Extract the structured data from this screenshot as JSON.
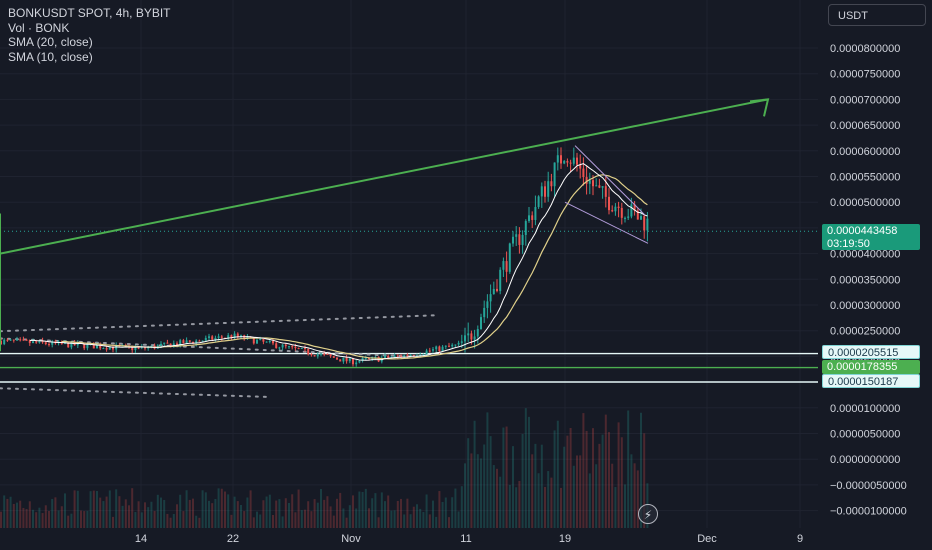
{
  "legend": {
    "symbol": "BONKUSDT SPOT, 4h, BYBIT",
    "volume": "Vol · BONK",
    "sma20": "SMA (20, close)",
    "sma10": "SMA (10, close)"
  },
  "currency_button": "USDT",
  "current_price": {
    "value": "0.0000443458",
    "countdown": "03:19:50"
  },
  "level_badges": [
    "0.0000205515",
    "0.0000178355",
    "0.0000150187"
  ],
  "flash_icon": "lightning-icon",
  "colors": {
    "background": "#161a25",
    "grid": "#1f2330",
    "up": "#26a69a",
    "down": "#ef5350",
    "sma20": "#e0d08a",
    "sma10": "#ffffff",
    "drawing_green": "#4caf50",
    "channel_line": "#b39ddb",
    "dotted": "#9598a1",
    "level_line": "#e6f8f8"
  },
  "chart_data": {
    "type": "candlestick",
    "title": "BONKUSDT SPOT, 4h, BYBIT",
    "price_ticks": [
      "0.0000800000",
      "0.0000750000",
      "0.0000700000",
      "0.0000650000",
      "0.0000600000",
      "0.0000550000",
      "0.0000500000",
      "0.0000450000",
      "0.0000400000",
      "0.0000350000",
      "0.0000300000",
      "0.0000250000",
      "0.0000200000",
      "0.0000150000",
      "0.0000100000",
      "0.0000050000",
      "0.0000000000",
      "−0.0000050000",
      "−0.0000100000"
    ],
    "time_ticks": [
      "14",
      "22",
      "Nov",
      "11",
      "19",
      "Dec",
      "9"
    ],
    "ylim": [
      -1.1e-05,
      8.4e-05
    ],
    "current_price": 4.43458e-05,
    "levels": [
      2.05515e-05,
      1.78355e-05,
      1.50187e-05
    ],
    "trend_drawings": {
      "impulse_leg_1": {
        "from": [
          "Nov 11",
          2.1e-05
        ],
        "to": [
          "Nov 19",
          4.78e-05
        ]
      },
      "pullback_leg": {
        "from": [
          "Nov 19",
          4.78e-05
        ],
        "to": [
          "Nov 25",
          4e-05
        ]
      },
      "projection_leg": {
        "from": [
          "Nov 25",
          4e-05
        ],
        "to": [
          "Dec 6",
          7e-05
        ]
      }
    },
    "ohlc_path": [
      [
        "start",
        2.3e-05
      ],
      [
        "14",
        2.15e-05
      ],
      [
        "22",
        2.4e-05
      ],
      [
        "Nov",
        1.9e-05
      ],
      [
        "Nov 5",
        2e-05
      ],
      [
        "11",
        2.25e-05
      ],
      [
        "15",
        4e-05
      ],
      [
        "19",
        6e-05
      ],
      [
        "21",
        5.15e-05
      ],
      [
        "25",
        4.43e-05
      ]
    ]
  }
}
